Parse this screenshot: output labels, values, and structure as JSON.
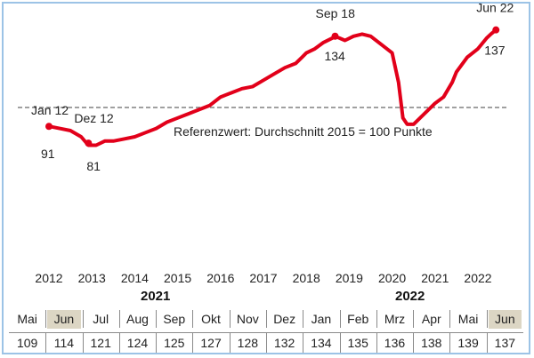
{
  "chart_data": {
    "type": "line",
    "title": "",
    "xlabel": "",
    "ylabel": "",
    "x_ticks": [
      "2012",
      "2013",
      "2014",
      "2015",
      "2016",
      "2017",
      "2018",
      "2019",
      "2020",
      "2021",
      "2022"
    ],
    "ylim": [
      60,
      150
    ],
    "line_color": "#e2001a",
    "reference": {
      "value": 100,
      "label": "Referenzwert: Durchschnitt 2015 = 100 Punkte",
      "color": "#808080",
      "style": "dashed"
    },
    "series": [
      {
        "x": [
          2012.0,
          2012.25,
          2012.5,
          2012.75,
          2012.92,
          2013.1,
          2013.3,
          2013.5,
          2013.75,
          2014.0,
          2014.25,
          2014.5,
          2014.75,
          2015.0,
          2015.25,
          2015.5,
          2015.75,
          2016.0,
          2016.25,
          2016.5,
          2016.75,
          2017.0,
          2017.25,
          2017.5,
          2017.75,
          2017.9,
          2018.0,
          2018.2,
          2018.4,
          2018.6,
          2018.67,
          2018.9,
          2019.1,
          2019.3,
          2019.5,
          2019.75,
          2020.0,
          2020.15,
          2020.25,
          2020.35,
          2020.5,
          2020.75,
          2021.0,
          2021.2,
          2021.4,
          2021.5,
          2021.75,
          2022.0,
          2022.2,
          2022.3,
          2022.42
        ],
        "y": [
          91,
          90,
          89,
          86,
          82,
          82,
          84,
          84,
          85,
          86,
          88,
          90,
          93,
          95,
          97,
          99,
          101,
          105,
          107,
          109,
          110,
          113,
          116,
          119,
          121,
          124,
          126,
          128,
          131,
          133,
          134,
          132,
          134,
          135,
          134,
          130,
          126,
          112,
          95,
          92,
          92,
          97,
          102,
          105,
          112,
          117,
          124,
          128,
          133,
          135,
          137
        ]
      }
    ],
    "annotations": [
      {
        "text": "Jan 12",
        "value": "91",
        "x": 2012.0,
        "y": 91
      },
      {
        "text": "Dez 12",
        "value": "81",
        "x": 2012.92,
        "y": 81
      },
      {
        "text": "Sep 18",
        "value": "134",
        "x": 2018.67,
        "y": 134
      },
      {
        "text": "Jun 22",
        "value": "137",
        "x": 2022.42,
        "y": 137
      }
    ]
  },
  "table": {
    "years": [
      "2021",
      "2022"
    ],
    "months": [
      "Mai",
      "Jun",
      "Jul",
      "Aug",
      "Sep",
      "Okt",
      "Nov",
      "Dez",
      "Jan",
      "Feb",
      "Mrz",
      "Apr",
      "Mai",
      "Jun"
    ],
    "values": [
      "109",
      "114",
      "121",
      "124",
      "125",
      "127",
      "128",
      "132",
      "134",
      "135",
      "136",
      "138",
      "139",
      "137"
    ],
    "highlighted": [
      "Jun",
      "Jun"
    ]
  }
}
